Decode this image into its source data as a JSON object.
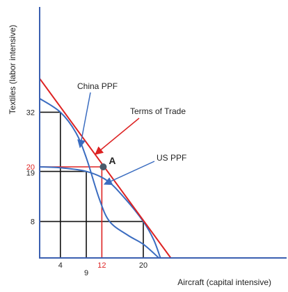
{
  "chart_data": {
    "type": "line",
    "xlabel": "Aircraft (capital intensive)",
    "ylabel": "Textiles (labor intensive)",
    "colors": {
      "axis": "#3a5fb0",
      "curve": "#3a6cc0",
      "trade": "#dd2222",
      "guide": "#111111",
      "point": "#4a5a6a"
    },
    "series": [
      {
        "name": "China PPF",
        "points": [
          [
            0,
            35
          ],
          [
            4,
            32
          ],
          [
            7,
            27.5
          ],
          [
            9,
            22
          ],
          [
            11.5,
            13
          ],
          [
            13.5,
            8
          ],
          [
            17,
            5
          ],
          [
            20,
            3
          ],
          [
            23,
            0
          ]
        ]
      },
      {
        "name": "US PPF",
        "points": [
          [
            0,
            20
          ],
          [
            4,
            19.8
          ],
          [
            9,
            19
          ],
          [
            13,
            17
          ],
          [
            16.5,
            13
          ],
          [
            20,
            8
          ],
          [
            22,
            4
          ],
          [
            23.3,
            0
          ]
        ]
      },
      {
        "name": "Terms of Trade",
        "points": [
          [
            0,
            39.4
          ],
          [
            25.3,
            0
          ]
        ]
      }
    ],
    "guides": {
      "black": [
        {
          "x": 4,
          "y": 32
        },
        {
          "x": 9,
          "y": 19
        },
        {
          "x": 20,
          "y": 8
        }
      ],
      "red": [
        {
          "x": 12,
          "y": 20
        }
      ]
    },
    "point": {
      "label": "A",
      "x": 12,
      "y": 20
    },
    "annotations": [
      {
        "text": "China PPF"
      },
      {
        "text": "Terms of Trade"
      },
      {
        "text": "US PPF"
      }
    ],
    "xticks": [
      {
        "label": "4",
        "value": 4,
        "color": "#222222"
      },
      {
        "label": "9",
        "value": 9,
        "color": "#222222"
      },
      {
        "label": "12",
        "value": 12,
        "color": "#dd2222"
      },
      {
        "label": "20",
        "value": 20,
        "color": "#222222"
      }
    ],
    "yticks": [
      {
        "label": "32",
        "value": 32,
        "color": "#222222"
      },
      {
        "label": "20",
        "value": 20,
        "color": "#dd2222"
      },
      {
        "label": "19",
        "value": 19,
        "color": "#222222"
      },
      {
        "label": "8",
        "value": 8,
        "color": "#222222"
      }
    ],
    "grid": false
  }
}
